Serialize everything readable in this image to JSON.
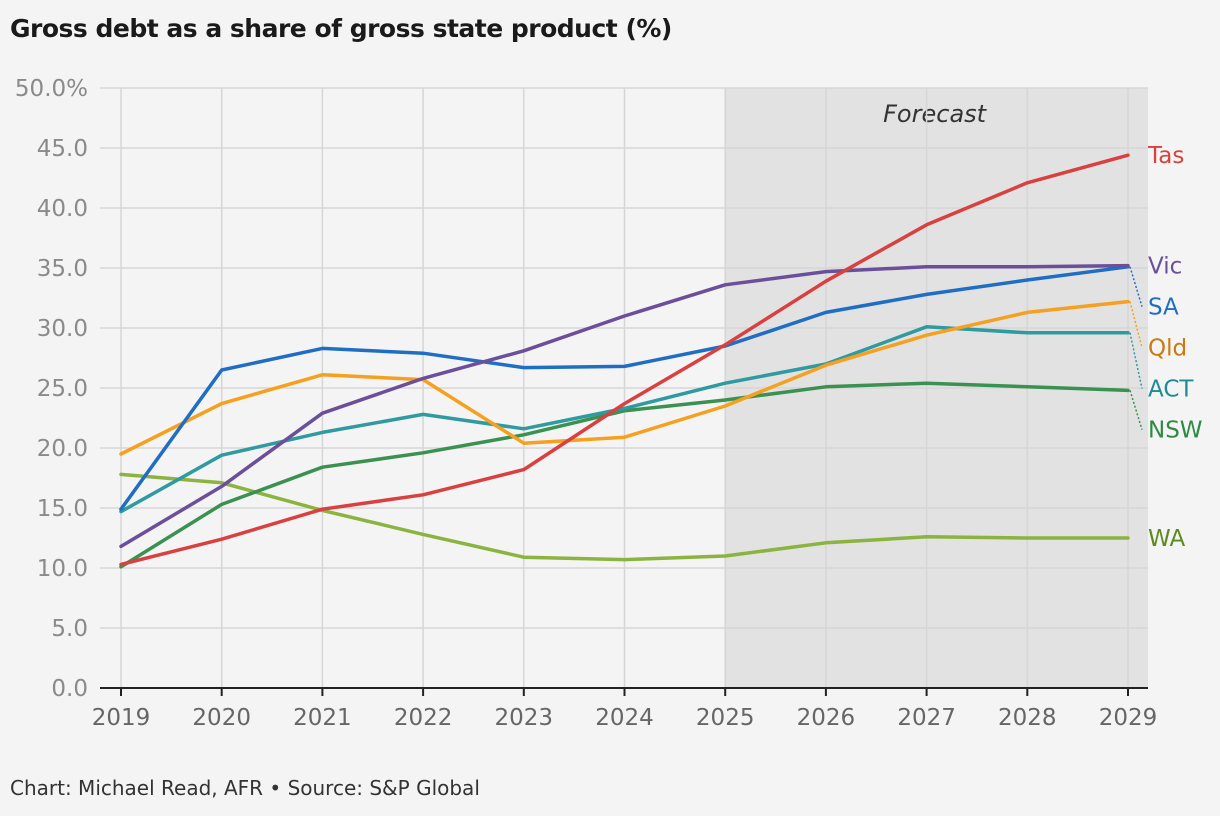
{
  "chart_data": {
    "type": "line",
    "title": "Gross debt as a share of gross state product (%)",
    "source": "Chart: Michael Read, AFR • Source: S&P Global",
    "x": [
      2019,
      2020,
      2021,
      2022,
      2023,
      2024,
      2025,
      2026,
      2027,
      2028,
      2029
    ],
    "y_ticks": [
      "0.0",
      "5.0",
      "10.0",
      "15.0",
      "20.0",
      "25.0",
      "30.0",
      "35.0",
      "40.0",
      "45.0",
      "50.0%"
    ],
    "ylim": [
      0,
      50
    ],
    "grid": true,
    "annotation": {
      "text": "Forecast",
      "x_start": 2025,
      "x_end": 2029
    },
    "series": [
      {
        "name": "WA",
        "color": "#8ab43f",
        "label_color": "#5c8a1e",
        "values": [
          17.8,
          17.1,
          14.8,
          12.8,
          10.9,
          10.7,
          11.0,
          12.1,
          12.6,
          12.5,
          12.5
        ]
      },
      {
        "name": "NSW",
        "color": "#3a9150",
        "label_color": "#2f8a45",
        "values": [
          10.1,
          15.3,
          18.4,
          19.6,
          21.1,
          23.1,
          24.0,
          25.1,
          25.4,
          25.1,
          24.8
        ]
      },
      {
        "name": "ACT",
        "color": "#2f9aa0",
        "label_color": "#1c8c95",
        "values": [
          14.7,
          19.4,
          21.3,
          22.8,
          21.6,
          23.3,
          25.4,
          27.0,
          30.1,
          29.6,
          29.6
        ]
      },
      {
        "name": "Qld",
        "color": "#f5a01e",
        "label_color": "#c97a10",
        "values": [
          19.5,
          23.7,
          26.1,
          25.7,
          20.4,
          20.9,
          23.5,
          26.9,
          29.4,
          31.3,
          32.2
        ]
      },
      {
        "name": "SA",
        "color": "#1f6ec4",
        "label_color": "#1f6ec4",
        "values": [
          14.9,
          26.5,
          28.3,
          27.9,
          26.7,
          26.8,
          28.5,
          31.3,
          32.8,
          34.0,
          35.1
        ]
      },
      {
        "name": "Vic",
        "color": "#6b4f9a",
        "label_color": "#6b4f9a",
        "values": [
          11.8,
          16.8,
          22.9,
          25.8,
          28.1,
          31.0,
          33.6,
          34.7,
          35.1,
          35.1,
          35.2
        ]
      },
      {
        "name": "Tas",
        "color": "#d94040",
        "label_color": "#d94040",
        "values": [
          10.3,
          12.4,
          14.9,
          16.1,
          18.2,
          23.7,
          28.6,
          33.9,
          38.6,
          42.1,
          44.4
        ]
      }
    ]
  }
}
